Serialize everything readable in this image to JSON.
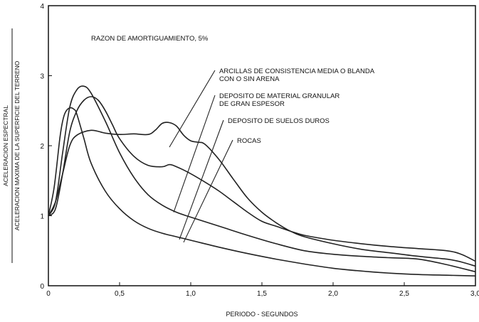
{
  "chart_data": {
    "type": "line",
    "title": "RAZON DE AMORTIGUAMIENTO, 5%",
    "xlabel": "PERIODO - SEGUNDOS",
    "ylabel_numerator": "ACELERACION ESPECTRAL",
    "ylabel_denominator": "ACELERACION MAXIMA DE LA SUPERFICIE DEL TERRENO",
    "xlim": [
      0,
      3.0
    ],
    "ylim": [
      0,
      4
    ],
    "x_ticks": [
      0,
      0.5,
      1.0,
      1.5,
      2.0,
      2.5,
      3.0
    ],
    "x_tick_labels": [
      "0",
      "0,5",
      "1,0",
      "1,5",
      "2,0",
      "2,5",
      "3,0"
    ],
    "y_ticks": [
      0,
      1,
      2,
      3,
      4
    ],
    "y_tick_labels": [
      "0",
      "1",
      "2",
      "3",
      "4"
    ],
    "grid": false,
    "series": [
      {
        "name": "ARCILLAS DE CONSISTENCIA MEDIA O BLANDA CON O SIN ARENA",
        "x": [
          0,
          0.05,
          0.1,
          0.15,
          0.2,
          0.3,
          0.4,
          0.5,
          0.6,
          0.7,
          0.75,
          0.8,
          0.85,
          0.9,
          0.95,
          1.0,
          1.05,
          1.1,
          1.2,
          1.3,
          1.4,
          1.5,
          1.6,
          1.7,
          1.8,
          2.0,
          2.2,
          2.4,
          2.6,
          2.8,
          2.9,
          3.0
        ],
        "y": [
          1.0,
          1.2,
          1.6,
          2.0,
          2.15,
          2.22,
          2.18,
          2.16,
          2.17,
          2.16,
          2.22,
          2.32,
          2.33,
          2.28,
          2.15,
          2.07,
          2.05,
          2.02,
          1.8,
          1.52,
          1.25,
          1.05,
          0.9,
          0.78,
          0.7,
          0.6,
          0.52,
          0.47,
          0.42,
          0.38,
          0.34,
          0.28
        ]
      },
      {
        "name": "DEPOSITO DE MATERIAL GRANULAR DE GRAN ESPESOR",
        "x": [
          0,
          0.05,
          0.1,
          0.15,
          0.2,
          0.25,
          0.3,
          0.35,
          0.4,
          0.45,
          0.5,
          0.6,
          0.7,
          0.8,
          0.85,
          0.9,
          1.0,
          1.1,
          1.2,
          1.3,
          1.4,
          1.5,
          1.6,
          1.7,
          1.8,
          2.0,
          2.2,
          2.4,
          2.6,
          2.8,
          2.9,
          3.0
        ],
        "y": [
          1.0,
          1.1,
          1.6,
          2.2,
          2.5,
          2.65,
          2.7,
          2.65,
          2.5,
          2.3,
          2.1,
          1.85,
          1.72,
          1.7,
          1.73,
          1.7,
          1.6,
          1.48,
          1.35,
          1.2,
          1.05,
          0.92,
          0.85,
          0.78,
          0.72,
          0.65,
          0.6,
          0.56,
          0.53,
          0.5,
          0.45,
          0.35
        ]
      },
      {
        "name": "DEPOSITO DE SUELOS DUROS",
        "x": [
          0,
          0.05,
          0.1,
          0.15,
          0.2,
          0.25,
          0.3,
          0.4,
          0.5,
          0.6,
          0.7,
          0.8,
          0.9,
          1.0,
          1.2,
          1.4,
          1.6,
          1.8,
          2.0,
          2.2,
          2.4,
          2.6,
          2.8,
          3.0
        ],
        "y": [
          1.0,
          1.2,
          1.9,
          2.55,
          2.8,
          2.85,
          2.75,
          2.35,
          1.9,
          1.55,
          1.3,
          1.15,
          1.05,
          0.98,
          0.85,
          0.72,
          0.6,
          0.5,
          0.45,
          0.42,
          0.4,
          0.38,
          0.3,
          0.2
        ]
      },
      {
        "name": "ROCAS",
        "x": [
          0,
          0.04,
          0.08,
          0.1,
          0.12,
          0.15,
          0.18,
          0.2,
          0.25,
          0.3,
          0.4,
          0.5,
          0.6,
          0.7,
          0.8,
          0.9,
          1.0,
          1.2,
          1.4,
          1.6,
          1.8,
          2.0,
          2.2,
          2.4,
          2.6,
          2.8,
          3.0
        ],
        "y": [
          1.0,
          1.4,
          2.1,
          2.35,
          2.48,
          2.54,
          2.52,
          2.45,
          2.1,
          1.75,
          1.35,
          1.1,
          0.93,
          0.82,
          0.75,
          0.7,
          0.65,
          0.55,
          0.46,
          0.38,
          0.31,
          0.25,
          0.21,
          0.18,
          0.16,
          0.15,
          0.14
        ]
      }
    ],
    "annotations": [
      {
        "lines": [
          "ARCILLAS DE CONSISTENCIA MEDIA O BLANDA",
          "CON O SIN ARENA"
        ],
        "series_index": 0,
        "leader_point": [
          0.85,
          1.98
        ]
      },
      {
        "lines": [
          "DEPOSITO DE MATERIAL GRANULAR",
          "DE GRAN ESPESOR"
        ],
        "series_index": 1,
        "leader_point": [
          0.88,
          1.05
        ]
      },
      {
        "lines": [
          "DEPOSITO DE SUELOS DUROS"
        ],
        "series_index": 2,
        "leader_point": [
          0.92,
          0.66
        ]
      },
      {
        "lines": [
          "ROCAS"
        ],
        "series_index": 3,
        "leader_point": [
          0.95,
          0.62
        ]
      }
    ]
  }
}
